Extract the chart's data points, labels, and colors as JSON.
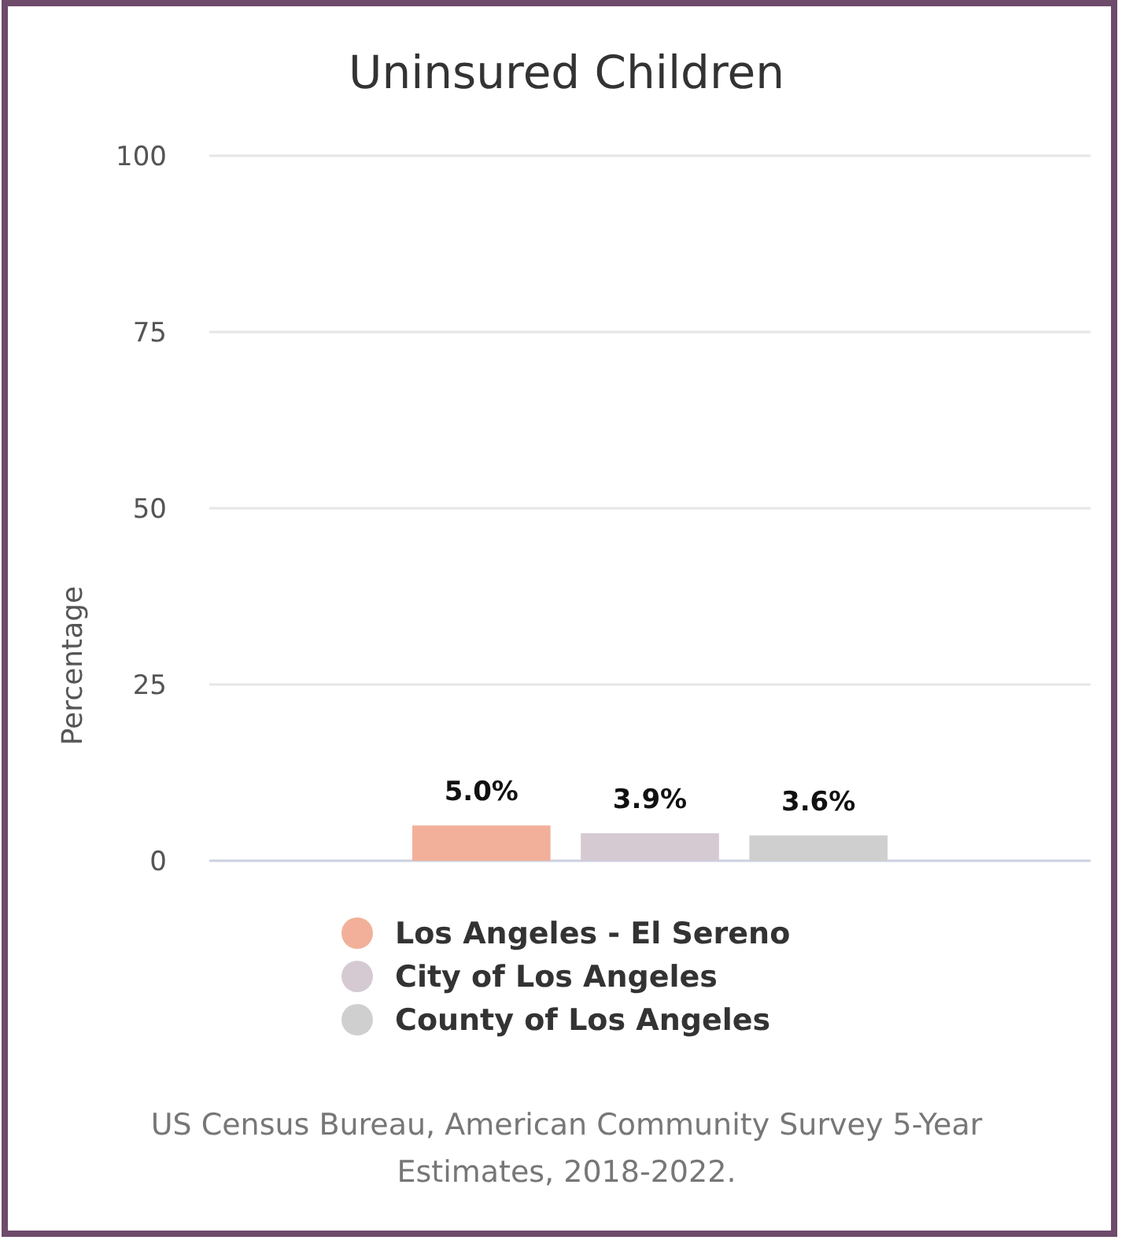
{
  "chart_data": {
    "type": "bar",
    "title": "Uninsured Children",
    "ylabel": "Percentage",
    "categories": [
      null
    ],
    "series": [
      {
        "name": "Los Angeles - El Sereno",
        "color": "#f2b09a",
        "values": [
          5.0
        ],
        "value_labels": [
          "5.0%"
        ]
      },
      {
        "name": "City of Los Angeles",
        "color": "#d5cad2",
        "values": [
          3.9
        ],
        "value_labels": [
          "3.9%"
        ]
      },
      {
        "name": "County of Los Angeles",
        "color": "#cfcfcf",
        "values": [
          3.6
        ],
        "value_labels": [
          "3.6%"
        ]
      }
    ],
    "ylim": [
      0,
      100
    ],
    "yticks": [
      0,
      25,
      50,
      75,
      100
    ],
    "grid": "y",
    "legend": "bottom",
    "annotations": [
      "US Census Bureau, American Community Survey 5-Year Estimates, 2018-2022."
    ]
  }
}
